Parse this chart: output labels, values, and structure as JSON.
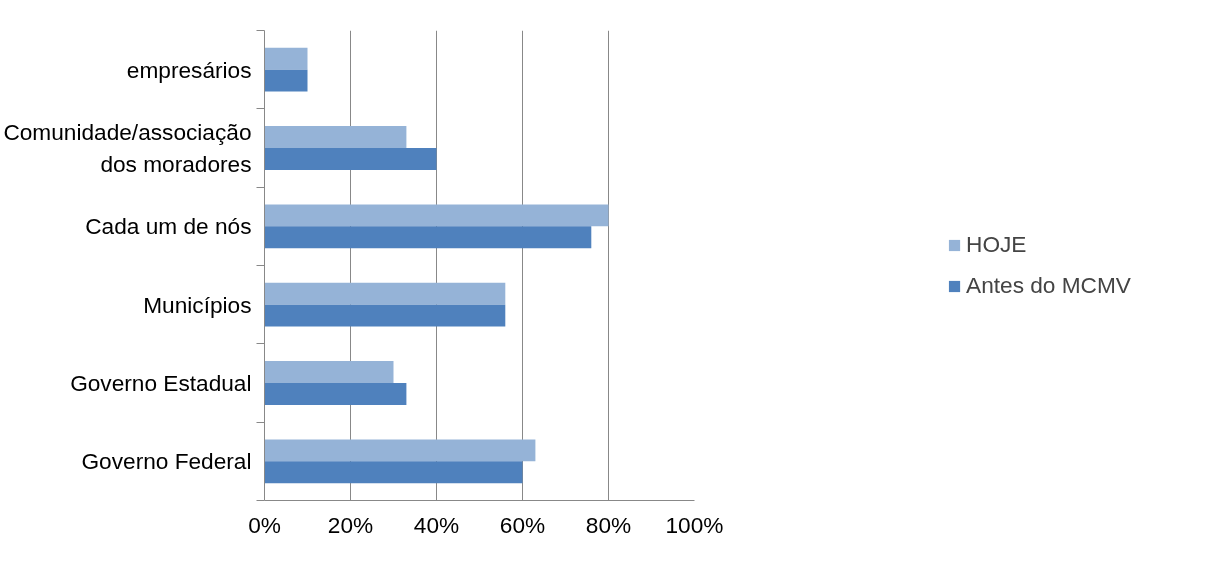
{
  "chart_data": {
    "type": "bar",
    "orientation": "horizontal",
    "categories": [
      "empresários",
      "Comunidade/associação dos moradores",
      "Cada um de nós",
      "Municípios",
      "Governo Estadual",
      "Governo Federal"
    ],
    "series": [
      {
        "name": "HOJE",
        "color": "#95b3d7",
        "values": [
          10,
          33,
          80,
          56,
          30,
          63
        ]
      },
      {
        "name": "Antes do MCMV",
        "color": "#4f81bd",
        "values": [
          10,
          40,
          76,
          56,
          33,
          60
        ]
      }
    ],
    "xlim": [
      0,
      100
    ],
    "xticks": [
      {
        "value": 0,
        "label": "0%"
      },
      {
        "value": 20,
        "label": "20%"
      },
      {
        "value": 40,
        "label": "40%"
      },
      {
        "value": 60,
        "label": "60%"
      },
      {
        "value": 80,
        "label": "80%"
      },
      {
        "value": 100,
        "label": "100%"
      }
    ],
    "grid": "x",
    "legend": "right"
  }
}
